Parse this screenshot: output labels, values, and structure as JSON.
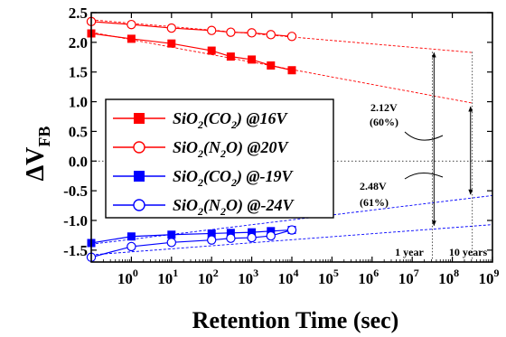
{
  "chart_data": {
    "type": "scatter",
    "title": "",
    "xlabel": "Retention Time (sec)",
    "ylabel_main": "ΔV",
    "ylabel_sub": "FB",
    "x_scale": "log",
    "xlim": [
      0.1,
      1000000000
    ],
    "ylim": [
      -1.7,
      2.5
    ],
    "x_ticks": [
      {
        "value": 1,
        "base": "10",
        "exp": "0"
      },
      {
        "value": 10,
        "base": "10",
        "exp": "1"
      },
      {
        "value": 100,
        "base": "10",
        "exp": "2"
      },
      {
        "value": 1000,
        "base": "10",
        "exp": "3"
      },
      {
        "value": 10000,
        "base": "10",
        "exp": "4"
      },
      {
        "value": 100000,
        "base": "10",
        "exp": "5"
      },
      {
        "value": 1000000,
        "base": "10",
        "exp": "6"
      },
      {
        "value": 10000000,
        "base": "10",
        "exp": "7"
      },
      {
        "value": 100000000,
        "base": "10",
        "exp": "8"
      },
      {
        "value": 1000000000,
        "base": "10",
        "exp": "9"
      }
    ],
    "y_ticks": [
      {
        "value": 2.5,
        "label": "2.5"
      },
      {
        "value": 2.0,
        "label": "2.0"
      },
      {
        "value": 1.5,
        "label": "1.5"
      },
      {
        "value": 1.0,
        "label": "1.0"
      },
      {
        "value": 0.5,
        "label": "0.5"
      },
      {
        "value": 0.0,
        "label": "0.0"
      },
      {
        "value": -0.5,
        "label": "-0.5"
      },
      {
        "value": -1.0,
        "label": "-1.0"
      },
      {
        "value": -1.5,
        "label": "-1.5"
      }
    ],
    "grid": false,
    "legend_position": "left-center",
    "series": [
      {
        "name_parts": [
          [
            "SiO",
            false
          ],
          [
            "2",
            true
          ],
          [
            "(CO",
            false
          ],
          [
            "2",
            true
          ],
          [
            ") @16V",
            false
          ]
        ],
        "color": "#ff0000",
        "marker": "square-filled",
        "x": [
          0.1,
          1,
          10,
          100,
          300,
          1000,
          3000,
          10000
        ],
        "y": [
          2.15,
          2.06,
          1.98,
          1.86,
          1.76,
          1.71,
          1.61,
          1.53
        ],
        "fit_extrapolation": [
          [
            0.1,
            2.17
          ],
          [
            300000000,
            0.98
          ]
        ]
      },
      {
        "name_parts": [
          [
            "SiO",
            false
          ],
          [
            "2",
            true
          ],
          [
            "(N",
            false
          ],
          [
            "2",
            true
          ],
          [
            "O) @20V",
            false
          ]
        ],
        "color": "#ff0000",
        "marker": "circle-open",
        "x": [
          0.1,
          1,
          10,
          100,
          300,
          1000,
          3000,
          10000
        ],
        "y": [
          2.35,
          2.3,
          2.24,
          2.2,
          2.17,
          2.16,
          2.13,
          2.1
        ],
        "fit_extrapolation": [
          [
            0.1,
            2.38
          ],
          [
            300000000,
            1.83
          ]
        ]
      },
      {
        "name_parts": [
          [
            "SiO",
            false
          ],
          [
            "2",
            true
          ],
          [
            "(CO",
            false
          ],
          [
            "2",
            true
          ],
          [
            ") @-19V",
            false
          ]
        ],
        "color": "#0000ff",
        "marker": "square-filled",
        "x": [
          0.1,
          1,
          10,
          100,
          300,
          1000,
          3000,
          10000
        ],
        "y": [
          -1.38,
          -1.27,
          -1.24,
          -1.22,
          -1.21,
          -1.2,
          -1.18,
          -1.16
        ],
        "fit_extrapolation": [
          [
            0.1,
            -1.4
          ],
          [
            1000000000,
            -0.58
          ]
        ]
      },
      {
        "name_parts": [
          [
            "SiO",
            false
          ],
          [
            "2",
            true
          ],
          [
            "(N",
            false
          ],
          [
            "2",
            true
          ],
          [
            "O) @-24V",
            false
          ]
        ],
        "color": "#0000ff",
        "marker": "circle-open",
        "x": [
          0.1,
          1,
          10,
          100,
          300,
          1000,
          3000,
          10000
        ],
        "y": [
          -1.62,
          -1.44,
          -1.37,
          -1.33,
          -1.3,
          -1.29,
          -1.26,
          -1.16
        ],
        "fit_extrapolation": [
          [
            0.1,
            -1.58
          ],
          [
            1000000000,
            -1.07
          ]
        ]
      }
    ],
    "annotations": {
      "red_window": {
        "line1": "2.12V",
        "line2": "(60%)"
      },
      "blue_window": {
        "line1": "2.48V",
        "line2": "(61%)"
      },
      "one_year": {
        "label": "1 year",
        "x": 31536000
      },
      "ten_years": {
        "label": "10 years",
        "x": 315360000
      }
    }
  }
}
